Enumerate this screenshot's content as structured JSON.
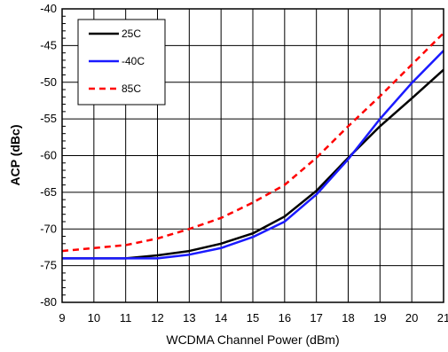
{
  "chart_data": {
    "type": "line",
    "title": "",
    "xlabel": "WCDMA Channel Power (dBm)",
    "ylabel": "ACP (dBc)",
    "xlim": [
      9,
      21
    ],
    "ylim": [
      -80,
      -40
    ],
    "xticks": [
      9,
      10,
      11,
      12,
      13,
      14,
      15,
      16,
      17,
      18,
      19,
      20,
      21
    ],
    "yticks": [
      -80,
      -75,
      -70,
      -65,
      -60,
      -55,
      -50,
      -45,
      -40
    ],
    "grid": true,
    "legend_position": "top-left",
    "series": [
      {
        "name": "25C",
        "color": "#000000",
        "style": "solid",
        "x": [
          9,
          10,
          11,
          12,
          13,
          14,
          15,
          16,
          17,
          18,
          19,
          20,
          21
        ],
        "y": [
          -74,
          -74,
          -74,
          -73.6,
          -73,
          -72,
          -70.6,
          -68.3,
          -64.8,
          -60.3,
          -56,
          -52.2,
          -48.3
        ]
      },
      {
        "name": "-40C",
        "color": "#1a1aff",
        "style": "solid",
        "x": [
          9,
          10,
          11,
          12,
          13,
          14,
          15,
          16,
          17,
          18,
          19,
          20,
          21
        ],
        "y": [
          -74,
          -74,
          -74,
          -74,
          -73.5,
          -72.6,
          -71.1,
          -69,
          -65.3,
          -60.5,
          -55,
          -50.1,
          -45.7
        ]
      },
      {
        "name": "85C",
        "color": "#ff0000",
        "style": "dashed",
        "x": [
          9,
          10,
          11,
          12,
          13,
          14,
          15,
          16,
          17,
          18,
          19,
          20,
          21
        ],
        "y": [
          -73,
          -72.6,
          -72.2,
          -71.3,
          -70,
          -68.5,
          -66.4,
          -64,
          -60.3,
          -56,
          -51.9,
          -47.6,
          -43.3
        ]
      }
    ]
  }
}
